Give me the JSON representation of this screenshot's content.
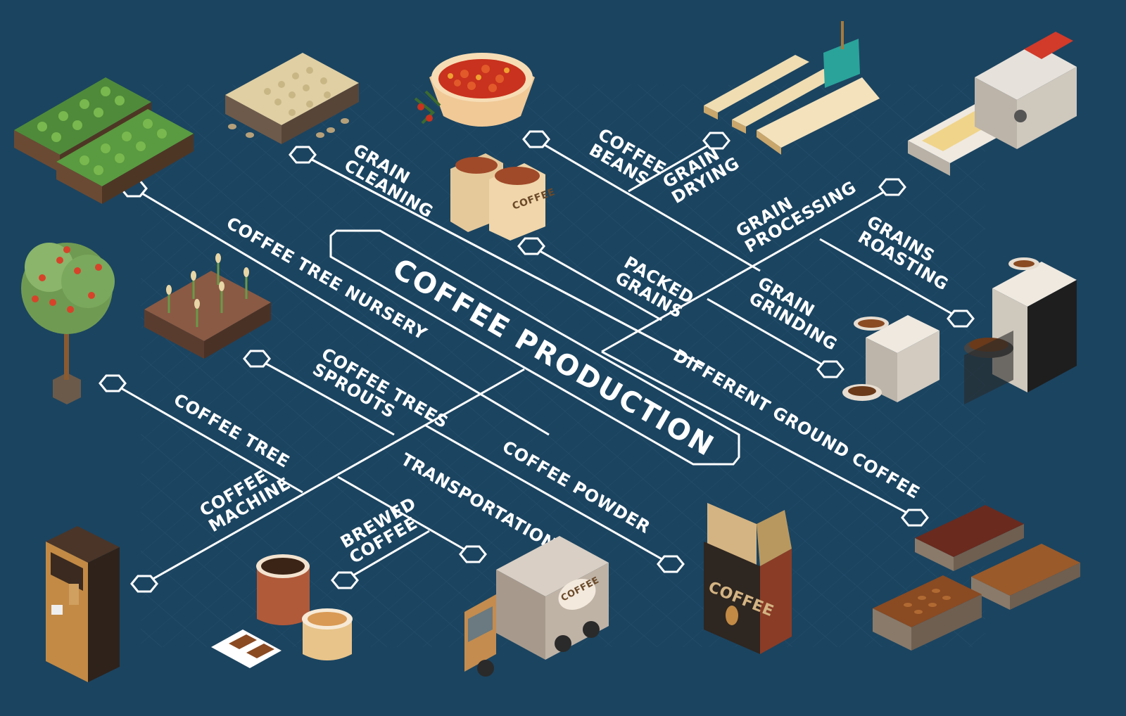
{
  "diagram": {
    "title": "COFFEE PRODUCTION",
    "steps": {
      "coffee_tree_nursery": "COFFEE TREE NURSERY",
      "grain_cleaning": "GRAIN\nCLEANING",
      "coffee_beans": "COFFEE\nBEANS",
      "grain_drying": "GRAIN\nDRYING",
      "grain_processing": "GRAIN\nPROCESSING",
      "grains_roasting": "GRAINS\nROASTING",
      "packed_grains": "PACKED\nGRAINS",
      "grain_grinding": "GRAIN\nGRINDING",
      "different_ground_coffee": "DIFFERENT GROUND COFFEE",
      "coffee_trees_sprouts": "COFFEE TREES\nSPROUTS",
      "coffee_tree": "COFFEE TREE",
      "coffee_machine": "COFFEE\nMACHINE",
      "transportation": "TRANSPORTATION",
      "brewed_coffee": "BREWED\nCOFFEE",
      "coffee_powder": "COFFEE POWDER"
    },
    "illustration_text": {
      "sack_label": "COFFEE",
      "bag_label": "COFFEE",
      "truck_label": "COFFEE"
    }
  },
  "colors": {
    "background": "#1b4460",
    "grid": "#2a5775",
    "line": "#ffffff",
    "bean_red": "#c8321e",
    "bean_brown": "#8a4a22",
    "kraft": "#c9a66b",
    "cardboard": "#b99263"
  }
}
